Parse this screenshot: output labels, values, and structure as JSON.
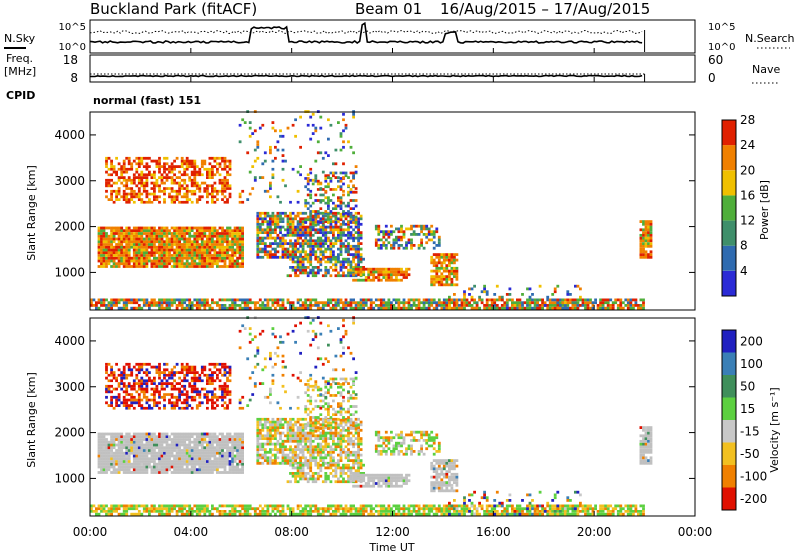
{
  "header": {
    "station": "Buckland Park (fitACF)",
    "beam": "Beam 01",
    "dates": "16/Aug/2015 – 17/Aug/2015"
  },
  "panels": {
    "nsky": {
      "left_label": "N.Sky",
      "right_label": "N.Search",
      "left_ticks": [
        "10^5",
        "10^0"
      ],
      "right_ticks": [
        "10^5",
        "10^0"
      ]
    },
    "freq": {
      "left_label_1": "Freq.",
      "left_label_2": "[MHz]",
      "right_label": "Nave",
      "left_ticks": [
        "18",
        "8"
      ],
      "right_ticks": [
        "60",
        "0"
      ]
    },
    "cpid": {
      "label": "CPID",
      "value": "normal (fast) 151"
    }
  },
  "axes": {
    "ylabel": "Slant Range [km]",
    "xlabel": "Time UT",
    "y_ticks": [
      "1000",
      "2000",
      "3000",
      "4000"
    ],
    "x_ticks": [
      "00:00",
      "04:00",
      "08:00",
      "12:00",
      "16:00",
      "20:00",
      "00:00"
    ]
  },
  "chart_data": [
    {
      "type": "heatmap",
      "name": "power",
      "colorbar_label": "Power [dB]",
      "colorbar_ticks": [
        4,
        8,
        12,
        16,
        20,
        24,
        28
      ],
      "colors": [
        "#2b2bd6",
        "#2f6bb0",
        "#3f8f6b",
        "#4fae3a",
        "#f0c000",
        "#f08000",
        "#e02000"
      ],
      "x_range_hours": [
        0,
        24
      ],
      "y_range_km": [
        180,
        4500
      ]
    },
    {
      "type": "heatmap",
      "name": "velocity",
      "colorbar_label": "Velocity [m s⁻¹]",
      "colorbar_ticks": [
        200,
        100,
        50,
        15,
        -15,
        -50,
        -100,
        -200
      ],
      "colors": [
        "#2020c0",
        "#3a7fb6",
        "#3f8f5b",
        "#5cd040",
        "#c8c8c8",
        "#f2c020",
        "#f08000",
        "#e01000"
      ],
      "x_range_hours": [
        0,
        24
      ],
      "y_range_km": [
        180,
        4500
      ]
    }
  ],
  "colors": {
    "ground_scatter": "#c0c0c0",
    "axis": "#000000",
    "background": "#ffffff"
  }
}
